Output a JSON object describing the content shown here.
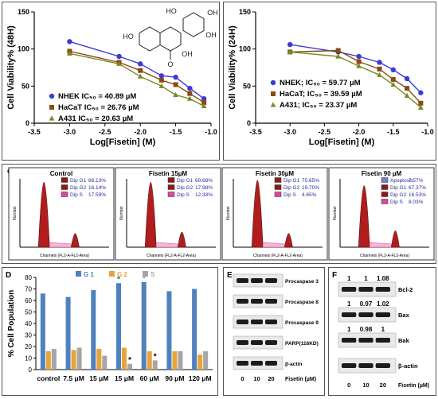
{
  "chart_data": [
    {
      "panel": "A",
      "type": "scatter",
      "ylabel": "Cell Viability% (48H)",
      "xlabel": "Log[Fisetin] (M)",
      "xlim": [
        -3.5,
        -1.0
      ],
      "ylim": [
        0,
        150
      ],
      "xticks": [
        "-3.5",
        "-3.0",
        "-2.5",
        "-2.0",
        "-1.5",
        "-1.0"
      ],
      "yticks": [
        "0",
        "50",
        "100",
        "150"
      ],
      "structure_labels": {
        "ho1": "HO",
        "ho2": "HO",
        "oh1": "OH",
        "oh2": "OH",
        "o": "O",
        "oh3": "OH"
      },
      "series": [
        {
          "name": "NHEK  IC₅₀ = 40.89 µM",
          "color": "#3a3ad6",
          "marker": "circle",
          "x": [
            -3.0,
            -2.3,
            -2.0,
            -1.7,
            -1.5,
            -1.3,
            -1.1
          ],
          "y": [
            110,
            90,
            80,
            64,
            62,
            47,
            33
          ]
        },
        {
          "name": "HaCaT IC₅₀ = 26.76 µM",
          "color": "#8a4a12",
          "marker": "square",
          "x": [
            -3.0,
            -2.3,
            -2.0,
            -1.7,
            -1.5,
            -1.3,
            -1.1
          ],
          "y": [
            97,
            82,
            71,
            58,
            52,
            40,
            28
          ]
        },
        {
          "name": "A431 IC₅₀ = 20.63 µM",
          "color": "#7a8a1e",
          "marker": "triangle",
          "x": [
            -3.0,
            -2.3,
            -2.0,
            -1.7,
            -1.5,
            -1.3,
            -1.1
          ],
          "y": [
            94,
            80,
            63,
            50,
            38,
            33,
            23
          ]
        }
      ]
    },
    {
      "panel": "B",
      "type": "scatter",
      "ylabel": "Cell Viability% (24H)",
      "xlabel": "Log[Fisetin] (M)",
      "xlim": [
        -3.5,
        -1.0
      ],
      "ylim": [
        0,
        150
      ],
      "xticks": [
        "-3.5",
        "-3.0",
        "-2.5",
        "-2.0",
        "-1.5",
        "-1.0"
      ],
      "yticks": [
        "0",
        "50",
        "100",
        "150"
      ],
      "series": [
        {
          "name": "NHEK; IC₅₀ = 59.77 µM",
          "color": "#3a3ad6",
          "marker": "circle",
          "x": [
            -3.0,
            -2.3,
            -2.0,
            -1.7,
            -1.5,
            -1.3,
            -1.1
          ],
          "y": [
            106,
            96,
            90,
            82,
            72,
            60,
            41
          ]
        },
        {
          "name": "HaCaT; IC₅₀ = 39.59 µM",
          "color": "#8a4a12",
          "marker": "square",
          "x": [
            -3.0,
            -2.3,
            -2.0,
            -1.7,
            -1.5,
            -1.3,
            -1.1
          ],
          "y": [
            96,
            98,
            83,
            73,
            59,
            47,
            27
          ]
        },
        {
          "name": "A431; IC₅₀ = 23.37 µM",
          "color": "#7a8a1e",
          "marker": "triangle",
          "x": [
            -3.0,
            -2.3,
            -2.0,
            -1.7,
            -1.5,
            -1.3,
            -1.1
          ],
          "y": [
            96,
            90,
            77,
            65,
            52,
            37,
            21
          ]
        }
      ]
    },
    {
      "panel": "C",
      "type": "histogram",
      "xlabel": "Channels (FL2-A-FL2-Area)",
      "ylabel": "Number",
      "plots": [
        {
          "title": "Control",
          "legend": [
            [
              "Dip G1",
              "66.13%",
              "#8b1a1a"
            ],
            [
              "Dip G2",
              "16.14%",
              "#8b1a1a"
            ],
            [
              "Dip S",
              "17.59%",
              "#d94aa0"
            ]
          ],
          "g1": 0.95,
          "g2": 0.2
        },
        {
          "title": "Fisetin 15µM",
          "legend": [
            [
              "Dip G1",
              "69.68%",
              "#8b1a1a"
            ],
            [
              "Dip G2",
              "17.98%",
              "#8b1a1a"
            ],
            [
              "Dip S",
              "12.33%",
              "#d94aa0"
            ]
          ],
          "g1": 0.95,
          "g2": 0.22
        },
        {
          "title": "Fisetin 30µM",
          "legend": [
            [
              "Dip G1",
              "75.65%",
              "#8b1a1a"
            ],
            [
              "Dip G2",
              "19.70%",
              "#8b1a1a"
            ],
            [
              "Dip S",
              "4.65%",
              "#d94aa0"
            ]
          ],
          "g1": 0.98,
          "g2": 0.2
        },
        {
          "title": "Fisetin 90 µM",
          "legend": [
            [
              "Apoptosis",
              "7.57%",
              "#7a7ad6"
            ],
            [
              "Dip G1",
              "67.37%",
              "#8b1a1a"
            ],
            [
              "Dip G2",
              "16.53%",
              "#8b1a1a"
            ],
            [
              "Dip S",
              "8.03%",
              "#d94aa0"
            ]
          ],
          "g1": 0.9,
          "g2": 0.24
        }
      ]
    },
    {
      "panel": "D",
      "type": "bar",
      "ylabel": "% Cell Population",
      "ylim": [
        0,
        80
      ],
      "yticks": [
        "0",
        "10",
        "20",
        "30",
        "40",
        "50",
        "60",
        "70",
        "80"
      ],
      "categories": [
        "control",
        "7.5 μM",
        "15 μM",
        "15 μM",
        "60 μM",
        "90 μM",
        "120 μM"
      ],
      "series": [
        {
          "name": "G 1",
          "color": "#4f81bd",
          "values": [
            66,
            63,
            69,
            75,
            76,
            68,
            70
          ]
        },
        {
          "name": "G 2",
          "color": "#e8a33a",
          "values": [
            16,
            17,
            18,
            19,
            16,
            16,
            13
          ]
        },
        {
          "name": "S",
          "color": "#a6a6a6",
          "values": [
            18,
            19,
            12,
            5,
            8,
            16,
            16
          ]
        }
      ],
      "star": "*"
    },
    {
      "panel": "E",
      "type": "blot",
      "bands": [
        "Procaspase 3",
        "Procaspase 8",
        "Procaspase 9",
        "PARP(116KD)",
        "β-actin"
      ],
      "lanes": [
        "0",
        "10",
        "20"
      ],
      "lane_label": "Fisetin (µM)"
    },
    {
      "panel": "F",
      "type": "blot",
      "bands": [
        "Bcl-2",
        "Bax",
        "Bak",
        "β-actin"
      ],
      "ratios": [
        [
          "1",
          "1",
          "1.08"
        ],
        [
          "1",
          "0.97",
          "1.02"
        ],
        [
          "1",
          "0.98",
          "1"
        ]
      ],
      "lanes": [
        "0",
        "10",
        "20"
      ],
      "lane_label": "Fisetin (µM)"
    }
  ]
}
